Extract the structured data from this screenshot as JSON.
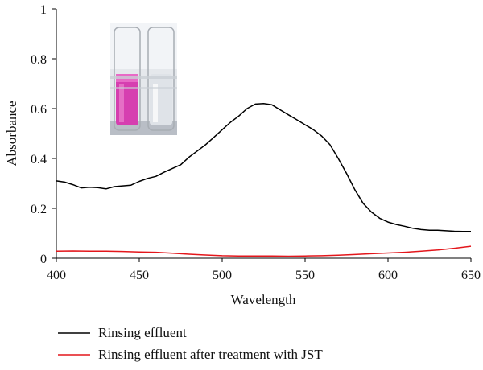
{
  "chart_data": {
    "type": "line",
    "xlabel": "Wavelength",
    "ylabel": "Absorbance",
    "xlim": [
      400,
      650
    ],
    "ylim": [
      0,
      1
    ],
    "x_ticks": [
      "400",
      "450",
      "500",
      "550",
      "600",
      "650"
    ],
    "y_ticks": [
      "0",
      "0.2",
      "0.4",
      "0.6",
      "0.8",
      "1"
    ],
    "grid": false,
    "legend_position": "bottom",
    "inset": "photo of two test tubes: left with magenta liquid, right clear",
    "series": [
      {
        "name": "Rinsing effluent",
        "color": "#000000",
        "x": [
          400,
          405,
          410,
          415,
          420,
          425,
          430,
          435,
          440,
          445,
          450,
          455,
          460,
          465,
          470,
          475,
          480,
          485,
          490,
          495,
          500,
          505,
          510,
          515,
          520,
          525,
          530,
          535,
          540,
          545,
          550,
          555,
          560,
          565,
          570,
          575,
          580,
          585,
          590,
          595,
          600,
          605,
          610,
          615,
          620,
          625,
          630,
          635,
          640,
          645,
          650
        ],
        "y": [
          0.31,
          0.305,
          0.295,
          0.282,
          0.285,
          0.283,
          0.278,
          0.287,
          0.29,
          0.293,
          0.308,
          0.32,
          0.328,
          0.345,
          0.36,
          0.375,
          0.405,
          0.43,
          0.455,
          0.485,
          0.515,
          0.545,
          0.57,
          0.6,
          0.618,
          0.62,
          0.615,
          0.595,
          0.575,
          0.555,
          0.535,
          0.515,
          0.49,
          0.455,
          0.4,
          0.34,
          0.275,
          0.22,
          0.185,
          0.16,
          0.145,
          0.135,
          0.128,
          0.12,
          0.115,
          0.112,
          0.112,
          0.11,
          0.108,
          0.107,
          0.107
        ]
      },
      {
        "name": "Rinsing effluent after treatment with JST",
        "color": "#e3161b",
        "x": [
          400,
          410,
          420,
          430,
          440,
          450,
          460,
          470,
          480,
          490,
          500,
          510,
          520,
          530,
          540,
          550,
          560,
          570,
          580,
          590,
          600,
          610,
          620,
          630,
          640,
          650
        ],
        "y": [
          0.028,
          0.029,
          0.028,
          0.028,
          0.027,
          0.025,
          0.024,
          0.02,
          0.016,
          0.013,
          0.01,
          0.009,
          0.009,
          0.009,
          0.008,
          0.009,
          0.01,
          0.012,
          0.015,
          0.018,
          0.021,
          0.024,
          0.028,
          0.033,
          0.04,
          0.048
        ]
      }
    ]
  }
}
